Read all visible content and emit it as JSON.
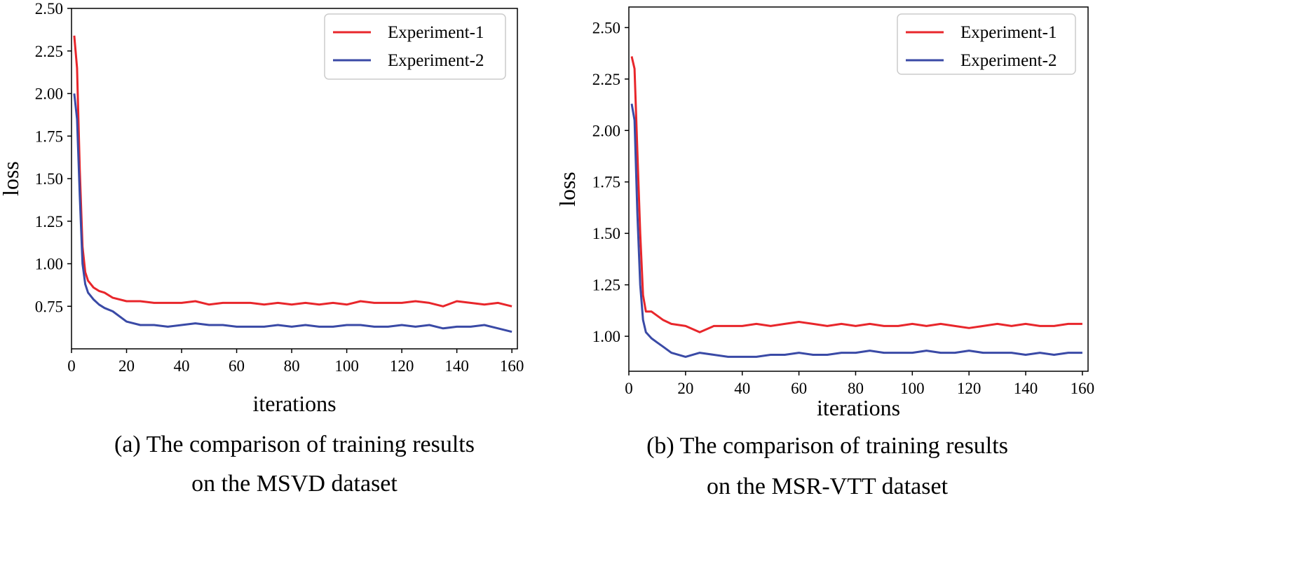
{
  "chart_data": [
    {
      "type": "line",
      "title": "",
      "xlabel": "iterations",
      "ylabel": "loss",
      "xlim": [
        0,
        162
      ],
      "ylim": [
        0.5,
        2.5
      ],
      "xticks": [
        0,
        20,
        40,
        60,
        80,
        100,
        120,
        140,
        160
      ],
      "yticks": [
        0.75,
        1.0,
        1.25,
        1.5,
        1.75,
        2.0,
        2.25,
        2.5
      ],
      "ytick_labels": [
        "0.75",
        "1.00",
        "1.25",
        "1.50",
        "1.75",
        "2.00",
        "2.25",
        "2.50"
      ],
      "legend_position": "top-right",
      "series": [
        {
          "name": "Experiment-1",
          "color": "#e8262b",
          "x": [
            1,
            2,
            3,
            4,
            5,
            6,
            8,
            10,
            12,
            15,
            20,
            25,
            30,
            35,
            40,
            45,
            50,
            55,
            60,
            65,
            70,
            75,
            80,
            85,
            90,
            95,
            100,
            105,
            110,
            115,
            120,
            125,
            130,
            135,
            140,
            145,
            150,
            155,
            160
          ],
          "y": [
            2.34,
            2.15,
            1.55,
            1.1,
            0.95,
            0.9,
            0.86,
            0.84,
            0.83,
            0.8,
            0.78,
            0.78,
            0.77,
            0.77,
            0.77,
            0.78,
            0.76,
            0.77,
            0.77,
            0.77,
            0.76,
            0.77,
            0.76,
            0.77,
            0.76,
            0.77,
            0.76,
            0.78,
            0.77,
            0.77,
            0.77,
            0.78,
            0.77,
            0.75,
            0.78,
            0.77,
            0.76,
            0.77,
            0.75
          ]
        },
        {
          "name": "Experiment-2",
          "color": "#3a4aa6",
          "x": [
            1,
            2,
            3,
            4,
            5,
            6,
            8,
            10,
            12,
            15,
            20,
            25,
            30,
            35,
            40,
            45,
            50,
            55,
            60,
            65,
            70,
            75,
            80,
            85,
            90,
            95,
            100,
            105,
            110,
            115,
            120,
            125,
            130,
            135,
            140,
            145,
            150,
            155,
            160
          ],
          "y": [
            2.0,
            1.85,
            1.4,
            1.0,
            0.88,
            0.83,
            0.79,
            0.76,
            0.74,
            0.72,
            0.66,
            0.64,
            0.64,
            0.63,
            0.64,
            0.65,
            0.64,
            0.64,
            0.63,
            0.63,
            0.63,
            0.64,
            0.63,
            0.64,
            0.63,
            0.63,
            0.64,
            0.64,
            0.63,
            0.63,
            0.64,
            0.63,
            0.64,
            0.62,
            0.63,
            0.63,
            0.64,
            0.62,
            0.6
          ]
        }
      ],
      "caption": [
        "(a) The comparison of training results",
        "on the MSVD dataset"
      ]
    },
    {
      "type": "line",
      "title": "",
      "xlabel": "iterations",
      "ylabel": "loss",
      "xlim": [
        0,
        162
      ],
      "ylim": [
        0.83,
        2.6
      ],
      "xticks": [
        0,
        20,
        40,
        60,
        80,
        100,
        120,
        140,
        160
      ],
      "yticks": [
        1.0,
        1.25,
        1.5,
        1.75,
        2.0,
        2.25,
        2.5
      ],
      "ytick_labels": [
        "1.00",
        "1.25",
        "1.50",
        "1.75",
        "2.00",
        "2.25",
        "2.50"
      ],
      "legend_position": "top-right",
      "series": [
        {
          "name": "Experiment-1",
          "color": "#e8262b",
          "x": [
            1,
            2,
            3,
            4,
            5,
            6,
            8,
            10,
            12,
            15,
            20,
            25,
            30,
            35,
            40,
            45,
            50,
            55,
            60,
            65,
            70,
            75,
            80,
            85,
            90,
            95,
            100,
            105,
            110,
            115,
            120,
            125,
            130,
            135,
            140,
            145,
            150,
            155,
            160
          ],
          "y": [
            2.36,
            2.3,
            1.9,
            1.5,
            1.2,
            1.12,
            1.12,
            1.1,
            1.08,
            1.06,
            1.05,
            1.02,
            1.05,
            1.05,
            1.05,
            1.06,
            1.05,
            1.06,
            1.07,
            1.06,
            1.05,
            1.06,
            1.05,
            1.06,
            1.05,
            1.05,
            1.06,
            1.05,
            1.06,
            1.05,
            1.04,
            1.05,
            1.06,
            1.05,
            1.06,
            1.05,
            1.05,
            1.06,
            1.06
          ]
        },
        {
          "name": "Experiment-2",
          "color": "#3a4aa6",
          "x": [
            1,
            2,
            3,
            4,
            5,
            6,
            8,
            10,
            12,
            15,
            20,
            25,
            30,
            35,
            40,
            45,
            50,
            55,
            60,
            65,
            70,
            75,
            80,
            85,
            90,
            95,
            100,
            105,
            110,
            115,
            120,
            125,
            130,
            135,
            140,
            145,
            150,
            155,
            160
          ],
          "y": [
            2.13,
            2.05,
            1.6,
            1.25,
            1.08,
            1.02,
            0.99,
            0.97,
            0.95,
            0.92,
            0.9,
            0.92,
            0.91,
            0.9,
            0.9,
            0.9,
            0.91,
            0.91,
            0.92,
            0.91,
            0.91,
            0.92,
            0.92,
            0.93,
            0.92,
            0.92,
            0.92,
            0.93,
            0.92,
            0.92,
            0.93,
            0.92,
            0.92,
            0.92,
            0.91,
            0.92,
            0.91,
            0.92,
            0.92
          ]
        }
      ],
      "caption": [
        "(b)  The comparison of training results",
        "on the MSR-VTT dataset"
      ]
    }
  ]
}
